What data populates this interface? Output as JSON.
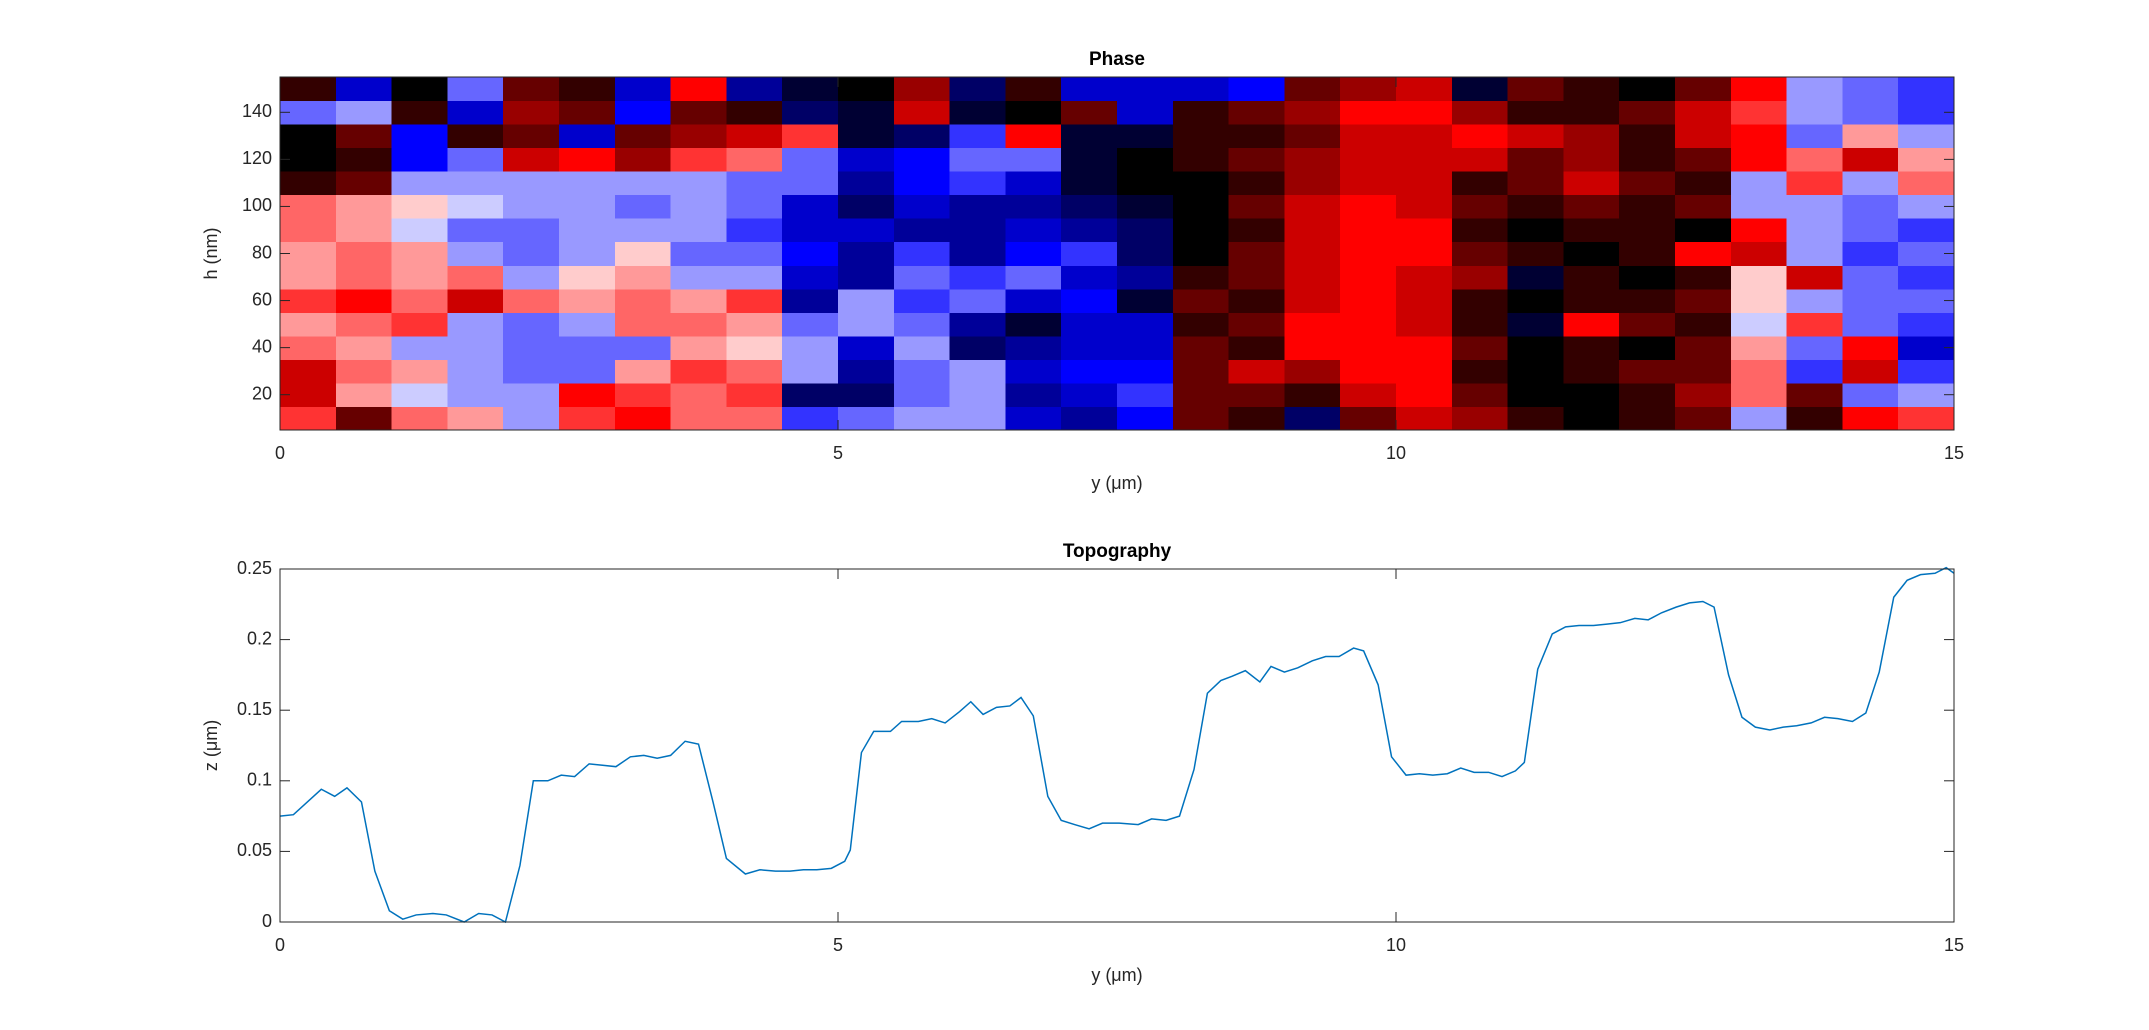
{
  "chart_data": [
    {
      "type": "heatmap",
      "title": "Phase",
      "x_label": "y (μm)",
      "y_label": "h (nm)",
      "xlim": [
        0,
        15
      ],
      "xticks": [
        0,
        5,
        10,
        15
      ],
      "ylim": [
        5,
        155
      ],
      "yticks": [
        20,
        40,
        60,
        80,
        100,
        120,
        140
      ],
      "zlim": [
        -10,
        10
      ],
      "x_edges": [
        0,
        0.5,
        1,
        1.5,
        2,
        2.5,
        3,
        3.5,
        4,
        4.5,
        5,
        5.5,
        6,
        6.5,
        7,
        7.5,
        8,
        8.5,
        9,
        9.5,
        10,
        10.5,
        11,
        11.5,
        12,
        12.5,
        13,
        13.5,
        14,
        14.5,
        15
      ],
      "y_edges": [
        5,
        15,
        25,
        35,
        45,
        55,
        65,
        75,
        85,
        95,
        105,
        115,
        125,
        135,
        145,
        155
      ],
      "z": [
        [
          4,
          8,
          3,
          2,
          -2,
          4,
          5,
          3,
          3,
          -4,
          -3,
          -2,
          -2,
          -6,
          -7,
          -5,
          8,
          9,
          -8,
          8,
          6,
          7,
          9,
          10,
          9,
          8,
          -2,
          9,
          5,
          4
        ],
        [
          6,
          2,
          -1,
          -2,
          -2,
          5,
          4,
          3,
          4,
          -8,
          -8,
          -3,
          -2,
          -7,
          -6,
          -4,
          8,
          8,
          9,
          6,
          5,
          8,
          10,
          10,
          9,
          7,
          3,
          8,
          -3,
          -2
        ],
        [
          6,
          3,
          2,
          -2,
          -3,
          -3,
          2,
          4,
          3,
          -2,
          -7,
          -3,
          -2,
          -6,
          -5,
          -5,
          8,
          6,
          7,
          5,
          5,
          9,
          10,
          9,
          8,
          8,
          3,
          -4,
          6,
          -4
        ],
        [
          3,
          2,
          -2,
          -2,
          -3,
          -3,
          -3,
          2,
          1,
          -2,
          -6,
          -2,
          -8,
          -7,
          -6,
          -6,
          8,
          9,
          5,
          5,
          5,
          8,
          -10,
          9,
          10,
          8,
          2,
          -3,
          5,
          -6
        ],
        [
          2,
          3,
          4,
          -2,
          -3,
          -2,
          3,
          3,
          2,
          -3,
          -2,
          -3,
          -7,
          -9,
          -6,
          -6,
          9,
          8,
          5,
          5,
          6,
          9,
          -9,
          5,
          8,
          9,
          -1,
          4,
          -3,
          -4
        ],
        [
          4,
          5,
          3,
          6,
          3,
          2,
          3,
          2,
          4,
          -7,
          -2,
          -4,
          -3,
          -6,
          -5,
          -9,
          8,
          9,
          6,
          5,
          6,
          9,
          -10,
          9,
          9,
          8,
          1,
          -2,
          -3,
          -3
        ],
        [
          2,
          3,
          2,
          3,
          -2,
          1,
          2,
          -2,
          -2,
          -6,
          -7,
          -3,
          -4,
          -3,
          -6,
          -7,
          9,
          8,
          6,
          5,
          6,
          7,
          -9,
          9,
          10,
          9,
          1,
          6,
          -3,
          -4
        ],
        [
          2,
          3,
          2,
          -2,
          -3,
          -2,
          1,
          -3,
          -3,
          -5,
          -7,
          -4,
          -7,
          -5,
          -4,
          -8,
          10,
          8,
          6,
          5,
          5,
          8,
          9,
          10,
          9,
          5,
          6,
          -2,
          -4,
          -3
        ],
        [
          3,
          2,
          -1,
          -3,
          -3,
          -2,
          -2,
          -2,
          -4,
          -6,
          -6,
          -7,
          -7,
          -6,
          -7,
          -8,
          10,
          9,
          6,
          5,
          5,
          9,
          10,
          9,
          9,
          -10,
          5,
          -2,
          -3,
          -4
        ],
        [
          3,
          2,
          1,
          -1,
          -2,
          -2,
          -3,
          -2,
          -3,
          -6,
          -8,
          -6,
          -7,
          -7,
          -8,
          -9,
          10,
          8,
          6,
          5,
          6,
          8,
          9,
          8,
          9,
          8,
          -2,
          -2,
          -3,
          -2
        ],
        [
          9,
          8,
          -2,
          -2,
          -2,
          -2,
          -2,
          -2,
          -3,
          -3,
          -7,
          -5,
          -4,
          -6,
          -9,
          -10,
          10,
          9,
          7,
          6,
          6,
          9,
          8,
          6,
          8,
          9,
          -2,
          4,
          -2,
          3
        ],
        [
          10,
          9,
          -5,
          -3,
          6,
          5,
          7,
          4,
          3,
          -3,
          -6,
          -5,
          -3,
          -3,
          -9,
          -10,
          9,
          8,
          7,
          6,
          6,
          6,
          8,
          7,
          9,
          8,
          5,
          3,
          6,
          2
        ],
        [
          -10,
          8,
          -5,
          9,
          8,
          -6,
          8,
          7,
          6,
          4,
          -9,
          -8,
          -4,
          5,
          -9,
          -9,
          9,
          9,
          8,
          6,
          6,
          5,
          6,
          7,
          9,
          6,
          5,
          -3,
          2,
          -2
        ],
        [
          -3,
          -2,
          9,
          -6,
          7,
          8,
          -5,
          8,
          9,
          -8,
          -9,
          6,
          -9,
          10,
          8,
          -6,
          9,
          8,
          7,
          5,
          5,
          7,
          9,
          9,
          8,
          6,
          4,
          -2,
          -3,
          -4
        ],
        [
          9,
          -6,
          10,
          -3,
          8,
          9,
          -6,
          5,
          -7,
          -9,
          -10,
          7,
          -8,
          9,
          -6,
          -6,
          -6,
          -5,
          8,
          7,
          6,
          -9,
          8,
          9,
          10,
          8,
          5,
          -2,
          -3,
          -4
        ]
      ]
    },
    {
      "type": "line",
      "title": "Topography",
      "x_label": "y (μm)",
      "y_label": "z (μm)",
      "color": "#0072bd",
      "xlim": [
        0,
        15
      ],
      "xticks": [
        0,
        5,
        10,
        15
      ],
      "ylim": [
        0,
        0.25
      ],
      "yticks": [
        0,
        0.05,
        0.1,
        0.15,
        0.2,
        0.25
      ],
      "x": [
        0,
        0.12,
        0.37,
        0.49,
        0.6,
        0.73,
        0.85,
        0.98,
        1.1,
        1.22,
        1.37,
        1.49,
        1.65,
        1.78,
        1.9,
        2.02,
        2.15,
        2.27,
        2.4,
        2.52,
        2.64,
        2.77,
        2.89,
        3.01,
        3.14,
        3.26,
        3.38,
        3.5,
        3.63,
        3.75,
        3.88,
        4.0,
        4.17,
        4.3,
        4.44,
        4.57,
        4.69,
        4.81,
        4.94,
        5.06,
        5.11,
        5.21,
        5.32,
        5.47,
        5.57,
        5.72,
        5.84,
        5.96,
        6.09,
        6.19,
        6.3,
        6.42,
        6.54,
        6.64,
        6.75,
        6.88,
        7.0,
        7.12,
        7.25,
        7.37,
        7.52,
        7.69,
        7.81,
        7.94,
        8.06,
        8.19,
        8.31,
        8.43,
        8.53,
        8.65,
        8.78,
        8.88,
        9.0,
        9.12,
        9.25,
        9.37,
        9.49,
        9.62,
        9.71,
        9.84,
        9.96,
        10.09,
        10.21,
        10.33,
        10.46,
        10.58,
        10.7,
        10.83,
        10.95,
        11.07,
        11.15,
        11.27,
        11.4,
        11.52,
        11.64,
        11.77,
        11.89,
        12.01,
        12.14,
        12.26,
        12.38,
        12.51,
        12.63,
        12.75,
        12.85,
        12.98,
        13.1,
        13.22,
        13.35,
        13.47,
        13.59,
        13.72,
        13.84,
        13.96,
        14.09,
        14.21,
        14.33,
        14.46,
        14.58,
        14.7,
        14.83,
        14.93,
        15.0
      ],
      "values": [
        0.075,
        0.076,
        0.094,
        0.089,
        0.095,
        0.085,
        0.036,
        0.008,
        0.002,
        0.005,
        0.006,
        0.005,
        0,
        0.006,
        0.005,
        0,
        0.04,
        0.1,
        0.1,
        0.104,
        0.103,
        0.112,
        0.111,
        0.11,
        0.117,
        0.118,
        0.116,
        0.118,
        0.128,
        0.126,
        0.085,
        0.045,
        0.034,
        0.037,
        0.036,
        0.036,
        0.037,
        0.037,
        0.038,
        0.043,
        0.051,
        0.12,
        0.135,
        0.135,
        0.142,
        0.142,
        0.144,
        0.141,
        0.149,
        0.156,
        0.147,
        0.152,
        0.153,
        0.159,
        0.146,
        0.089,
        0.072,
        0.069,
        0.066,
        0.07,
        0.07,
        0.069,
        0.073,
        0.072,
        0.075,
        0.108,
        0.162,
        0.171,
        0.174,
        0.178,
        0.17,
        0.181,
        0.177,
        0.18,
        0.185,
        0.188,
        0.188,
        0.194,
        0.192,
        0.168,
        0.117,
        0.104,
        0.105,
        0.104,
        0.105,
        0.109,
        0.106,
        0.106,
        0.103,
        0.107,
        0.113,
        0.179,
        0.204,
        0.209,
        0.21,
        0.21,
        0.211,
        0.212,
        0.215,
        0.214,
        0.219,
        0.223,
        0.226,
        0.227,
        0.223,
        0.175,
        0.145,
        0.138,
        0.136,
        0.138,
        0.139,
        0.141,
        0.145,
        0.144,
        0.142,
        0.148,
        0.177,
        0.23,
        0.242,
        0.246,
        0.247,
        0.251,
        0.247
      ]
    }
  ]
}
